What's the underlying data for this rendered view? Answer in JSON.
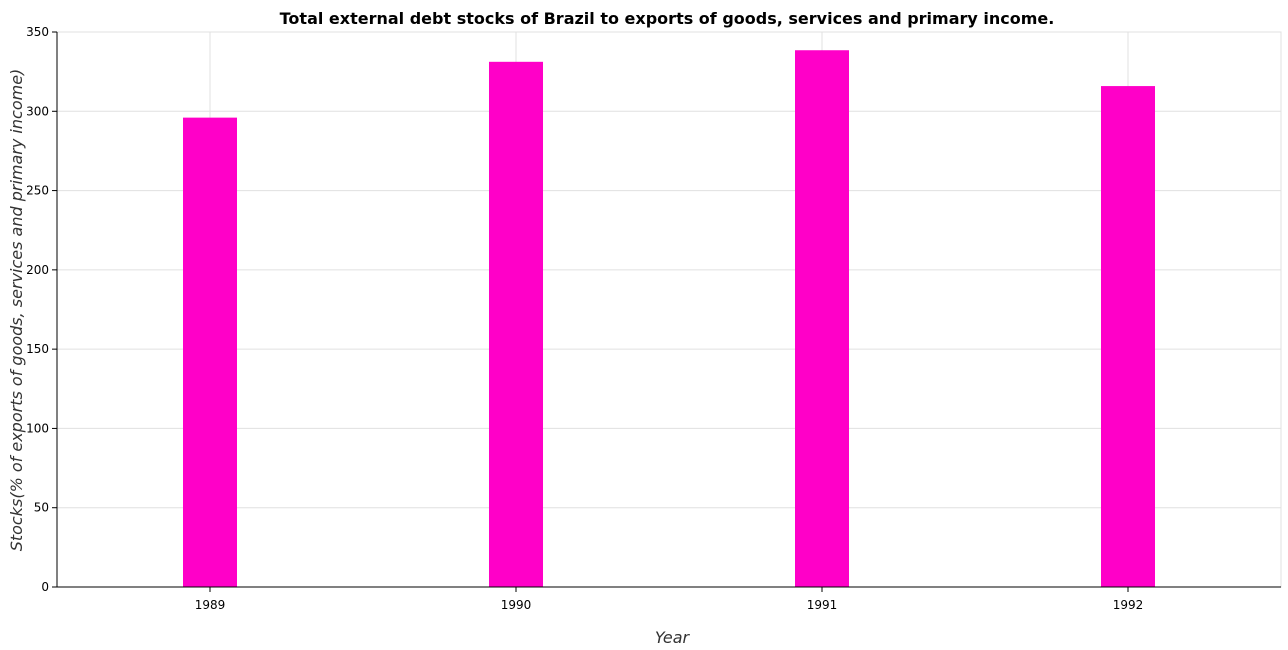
{
  "chart_data": {
    "type": "bar",
    "title": "Total external debt stocks of Brazil to exports of goods, services and primary income.",
    "xlabel": "Year",
    "ylabel": "Stocks(% of exports of goods, services and primary income)",
    "categories": [
      "1989",
      "1990",
      "1991",
      "1992"
    ],
    "values": [
      296,
      331.2,
      338.5,
      315.9
    ],
    "ylim": [
      0,
      350
    ],
    "yticks": [
      0,
      50,
      100,
      150,
      200,
      250,
      300,
      350
    ],
    "grid": true,
    "bar_color": "#ff00c8"
  }
}
